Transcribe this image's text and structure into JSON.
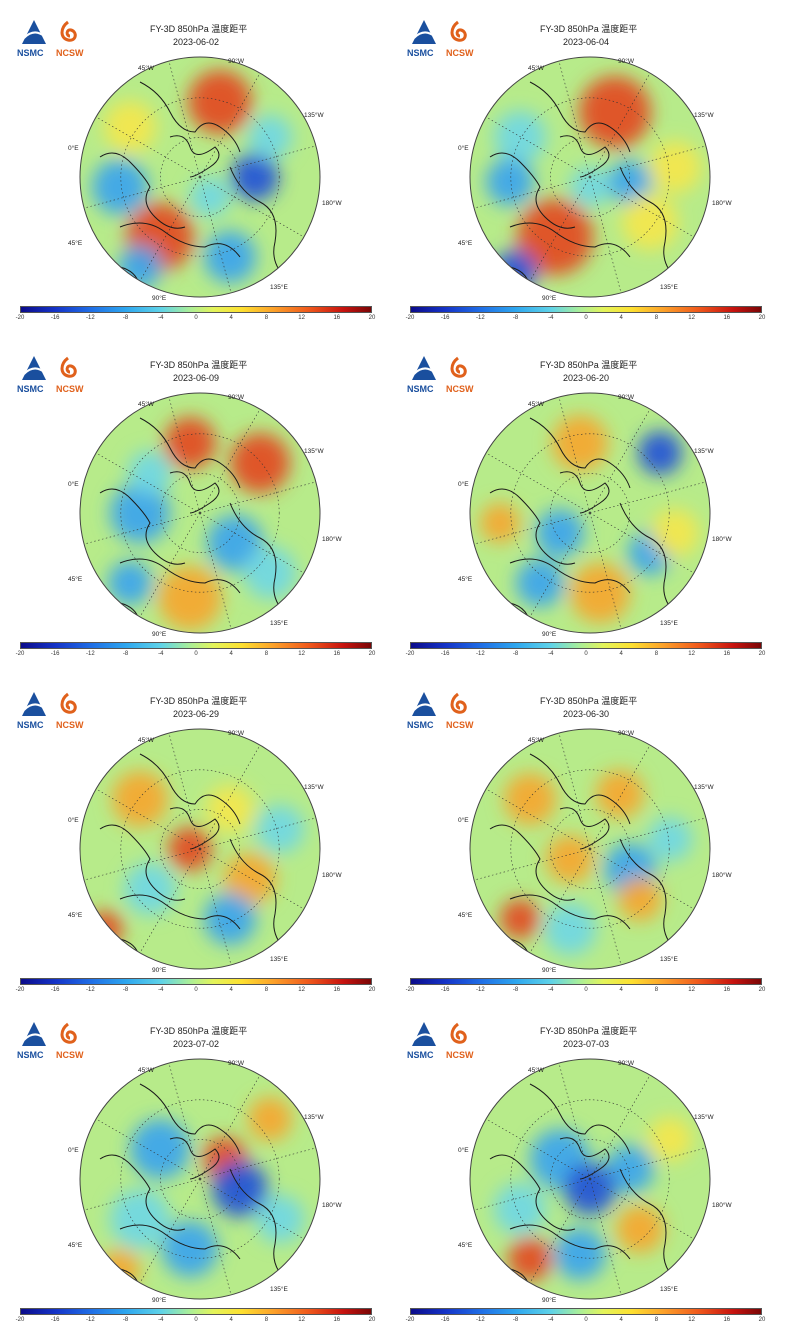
{
  "logo": {
    "left_text": "NSMC",
    "right_text": "NCSW",
    "brand_blue": "#1a4f9e",
    "brand_orange": "#e0611c"
  },
  "colorbar_ticks": [
    "-20",
    "-16",
    "-12",
    "-8",
    "-4",
    "0",
    "4",
    "8",
    "12",
    "16",
    "20"
  ],
  "panels": [
    {
      "title": "FY-3D 850hPa 温度距平",
      "date": "2023-06-02",
      "lon_labels": {
        "w45": "45°W",
        "w90": "90°W",
        "w135": "135°W",
        "e0": "0°E",
        "w180": "180°W",
        "e45": "45°E",
        "e90": "90°E",
        "e135": "135°E"
      }
    },
    {
      "title": "FY-3D 850hPa 温度距平",
      "date": "2023-06-04",
      "lon_labels": {
        "w45": "45°W",
        "w90": "90°W",
        "w135": "135°W",
        "e0": "0°E",
        "w180": "180°W",
        "e45": "45°E",
        "e90": "90°E",
        "e135": "135°E"
      }
    },
    {
      "title": "FY-3D 850hPa 温度距平",
      "date": "2023-06-09",
      "lon_labels": {
        "w45": "45°W",
        "w90": "90°W",
        "w135": "135°W",
        "e0": "0°E",
        "w180": "180°W",
        "e45": "45°E",
        "e90": "90°E",
        "e135": "135°E"
      }
    },
    {
      "title": "FY-3D 850hPa 温度距平",
      "date": "2023-06-20",
      "lon_labels": {
        "w45": "45°W",
        "w90": "90°W",
        "w135": "135°W",
        "e0": "0°E",
        "w180": "180°W",
        "e45": "45°E",
        "e90": "90°E",
        "e135": "135°E"
      }
    },
    {
      "title": "FY-3D 850hPa 温度距平",
      "date": "2023-06-29",
      "lon_labels": {
        "w45": "45°W",
        "w90": "90°W",
        "w135": "135°W",
        "e0": "0°E",
        "w180": "180°W",
        "e45": "45°E",
        "e90": "90°E",
        "e135": "135°E"
      }
    },
    {
      "title": "FY-3D 850hPa 温度距平",
      "date": "2023-06-30",
      "lon_labels": {
        "w45": "45°W",
        "w90": "90°W",
        "w135": "135°W",
        "e0": "0°E",
        "w180": "180°W",
        "e45": "45°E",
        "e90": "90°E",
        "e135": "135°E"
      }
    },
    {
      "title": "FY-3D 850hPa 温度距平",
      "date": "2023-07-02",
      "lon_labels": {
        "w45": "45°W",
        "w90": "90°W",
        "w135": "135°W",
        "e0": "0°E",
        "w180": "180°W",
        "e45": "45°E",
        "e90": "90°E",
        "e135": "135°E"
      }
    },
    {
      "title": "FY-3D 850hPa 温度距平",
      "date": "2023-07-03",
      "lon_labels": {
        "w45": "45°W",
        "w90": "90°W",
        "w135": "135°W",
        "e0": "0°E",
        "w180": "180°W",
        "e45": "45°E",
        "e90": "90°E",
        "e135": "135°E"
      }
    }
  ]
}
